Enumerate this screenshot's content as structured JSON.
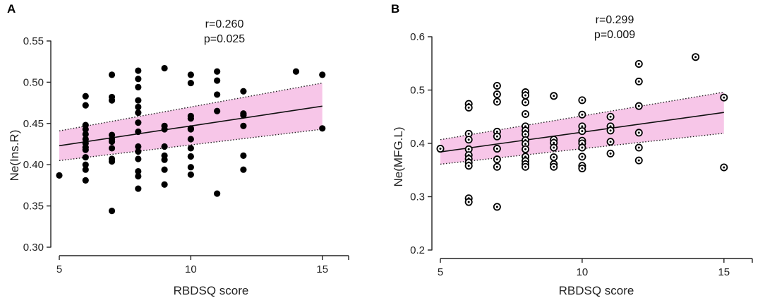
{
  "chart_data": [
    {
      "type": "scatter",
      "panel_label": "A",
      "xlabel": "RBDSQ score",
      "ylabel": "Ne(Ins.R)",
      "xlim": [
        5,
        16
      ],
      "ylim": [
        0.3,
        0.55
      ],
      "xticks": [
        5,
        10,
        15
      ],
      "xtick_labels": [
        "5",
        "10",
        "15"
      ],
      "yticks": [
        0.3,
        0.35,
        0.4,
        0.45,
        0.5,
        0.55
      ],
      "ytick_labels": [
        "0.30",
        "0.35",
        "0.40",
        "0.45",
        "0.50",
        "0.55"
      ],
      "stats": {
        "r": "r=0.260",
        "p": "p=0.025"
      },
      "marker": "filled",
      "fit": {
        "x": [
          5,
          15
        ],
        "y": [
          0.423,
          0.471
        ]
      },
      "band": {
        "x": [
          5,
          15
        ],
        "upper": [
          0.441,
          0.499
        ],
        "lower": [
          0.405,
          0.443
        ]
      },
      "points": [
        {
          "x": 5,
          "y": 0.387
        },
        {
          "x": 6,
          "y": 0.483
        },
        {
          "x": 6,
          "y": 0.472
        },
        {
          "x": 6,
          "y": 0.448
        },
        {
          "x": 6,
          "y": 0.443
        },
        {
          "x": 6,
          "y": 0.437
        },
        {
          "x": 6,
          "y": 0.431
        },
        {
          "x": 6,
          "y": 0.426
        },
        {
          "x": 6,
          "y": 0.421
        },
        {
          "x": 6,
          "y": 0.418
        },
        {
          "x": 6,
          "y": 0.409
        },
        {
          "x": 6,
          "y": 0.4
        },
        {
          "x": 6,
          "y": 0.394
        },
        {
          "x": 6,
          "y": 0.381
        },
        {
          "x": 7,
          "y": 0.509
        },
        {
          "x": 7,
          "y": 0.482
        },
        {
          "x": 7,
          "y": 0.478
        },
        {
          "x": 7,
          "y": 0.436
        },
        {
          "x": 7,
          "y": 0.431
        },
        {
          "x": 7,
          "y": 0.428
        },
        {
          "x": 7,
          "y": 0.42
        },
        {
          "x": 7,
          "y": 0.407
        },
        {
          "x": 7,
          "y": 0.404
        },
        {
          "x": 7,
          "y": 0.344
        },
        {
          "x": 8,
          "y": 0.514
        },
        {
          "x": 8,
          "y": 0.504
        },
        {
          "x": 8,
          "y": 0.494
        },
        {
          "x": 8,
          "y": 0.478
        },
        {
          "x": 8,
          "y": 0.47
        },
        {
          "x": 8,
          "y": 0.463
        },
        {
          "x": 8,
          "y": 0.451
        },
        {
          "x": 8,
          "y": 0.44
        },
        {
          "x": 8,
          "y": 0.422
        },
        {
          "x": 8,
          "y": 0.416
        },
        {
          "x": 8,
          "y": 0.407
        },
        {
          "x": 8,
          "y": 0.392
        },
        {
          "x": 8,
          "y": 0.386
        },
        {
          "x": 8,
          "y": 0.371
        },
        {
          "x": 9,
          "y": 0.517
        },
        {
          "x": 9,
          "y": 0.447
        },
        {
          "x": 9,
          "y": 0.443
        },
        {
          "x": 9,
          "y": 0.422
        },
        {
          "x": 9,
          "y": 0.411
        },
        {
          "x": 9,
          "y": 0.406
        },
        {
          "x": 9,
          "y": 0.394
        },
        {
          "x": 9,
          "y": 0.376
        },
        {
          "x": 10,
          "y": 0.509
        },
        {
          "x": 10,
          "y": 0.499
        },
        {
          "x": 10,
          "y": 0.459
        },
        {
          "x": 10,
          "y": 0.456
        },
        {
          "x": 10,
          "y": 0.444
        },
        {
          "x": 10,
          "y": 0.443
        },
        {
          "x": 10,
          "y": 0.431
        },
        {
          "x": 10,
          "y": 0.42
        },
        {
          "x": 10,
          "y": 0.41
        },
        {
          "x": 10,
          "y": 0.397
        },
        {
          "x": 10,
          "y": 0.388
        },
        {
          "x": 11,
          "y": 0.513
        },
        {
          "x": 11,
          "y": 0.502
        },
        {
          "x": 11,
          "y": 0.485
        },
        {
          "x": 11,
          "y": 0.465
        },
        {
          "x": 11,
          "y": 0.365
        },
        {
          "x": 12,
          "y": 0.489
        },
        {
          "x": 12,
          "y": 0.462
        },
        {
          "x": 12,
          "y": 0.46
        },
        {
          "x": 12,
          "y": 0.447
        },
        {
          "x": 12,
          "y": 0.411
        },
        {
          "x": 12,
          "y": 0.394
        },
        {
          "x": 14,
          "y": 0.513
        },
        {
          "x": 15,
          "y": 0.509
        },
        {
          "x": 15,
          "y": 0.444
        }
      ]
    },
    {
      "type": "scatter",
      "panel_label": "B",
      "xlabel": "RBDSQ score",
      "ylabel": "Ne(MFG.L)",
      "xlim": [
        5,
        16
      ],
      "ylim": [
        0.2,
        0.6
      ],
      "xticks": [
        5,
        10,
        15
      ],
      "xtick_labels": [
        "5",
        "10",
        "15"
      ],
      "yticks": [
        0.2,
        0.3,
        0.4,
        0.5,
        0.6
      ],
      "ytick_labels": [
        "0.2",
        "0.3",
        "0.4",
        "0.5",
        "0.6"
      ],
      "stats": {
        "r": "r=0.299",
        "p": "p=0.009"
      },
      "marker": "ring",
      "fit": {
        "x": [
          5,
          15
        ],
        "y": [
          0.384,
          0.458
        ]
      },
      "band": {
        "x": [
          5,
          15
        ],
        "upper": [
          0.407,
          0.496
        ],
        "lower": [
          0.361,
          0.419
        ]
      },
      "points": [
        {
          "x": 5,
          "y": 0.39
        },
        {
          "x": 6,
          "y": 0.474
        },
        {
          "x": 6,
          "y": 0.467
        },
        {
          "x": 6,
          "y": 0.418
        },
        {
          "x": 6,
          "y": 0.407
        },
        {
          "x": 6,
          "y": 0.389
        },
        {
          "x": 6,
          "y": 0.378
        },
        {
          "x": 6,
          "y": 0.371
        },
        {
          "x": 6,
          "y": 0.364
        },
        {
          "x": 6,
          "y": 0.358
        },
        {
          "x": 6,
          "y": 0.297
        },
        {
          "x": 6,
          "y": 0.29
        },
        {
          "x": 7,
          "y": 0.508
        },
        {
          "x": 7,
          "y": 0.492
        },
        {
          "x": 7,
          "y": 0.478
        },
        {
          "x": 7,
          "y": 0.422
        },
        {
          "x": 7,
          "y": 0.413
        },
        {
          "x": 7,
          "y": 0.39
        },
        {
          "x": 7,
          "y": 0.37
        },
        {
          "x": 7,
          "y": 0.356
        },
        {
          "x": 7,
          "y": 0.281
        },
        {
          "x": 8,
          "y": 0.496
        },
        {
          "x": 8,
          "y": 0.49
        },
        {
          "x": 8,
          "y": 0.477
        },
        {
          "x": 8,
          "y": 0.455
        },
        {
          "x": 8,
          "y": 0.432
        },
        {
          "x": 8,
          "y": 0.424
        },
        {
          "x": 8,
          "y": 0.417
        },
        {
          "x": 8,
          "y": 0.406
        },
        {
          "x": 8,
          "y": 0.399
        },
        {
          "x": 8,
          "y": 0.389
        },
        {
          "x": 8,
          "y": 0.375
        },
        {
          "x": 8,
          "y": 0.367
        },
        {
          "x": 8,
          "y": 0.361
        },
        {
          "x": 8,
          "y": 0.356
        },
        {
          "x": 9,
          "y": 0.489
        },
        {
          "x": 9,
          "y": 0.407
        },
        {
          "x": 9,
          "y": 0.401
        },
        {
          "x": 9,
          "y": 0.392
        },
        {
          "x": 9,
          "y": 0.374
        },
        {
          "x": 9,
          "y": 0.361
        },
        {
          "x": 9,
          "y": 0.356
        },
        {
          "x": 10,
          "y": 0.481
        },
        {
          "x": 10,
          "y": 0.454
        },
        {
          "x": 10,
          "y": 0.432
        },
        {
          "x": 10,
          "y": 0.423
        },
        {
          "x": 10,
          "y": 0.405
        },
        {
          "x": 10,
          "y": 0.4
        },
        {
          "x": 10,
          "y": 0.392
        },
        {
          "x": 10,
          "y": 0.375
        },
        {
          "x": 10,
          "y": 0.358
        },
        {
          "x": 10,
          "y": 0.353
        },
        {
          "x": 11,
          "y": 0.45
        },
        {
          "x": 11,
          "y": 0.432
        },
        {
          "x": 11,
          "y": 0.424
        },
        {
          "x": 11,
          "y": 0.403
        },
        {
          "x": 11,
          "y": 0.381
        },
        {
          "x": 12,
          "y": 0.549
        },
        {
          "x": 12,
          "y": 0.516
        },
        {
          "x": 12,
          "y": 0.47
        },
        {
          "x": 12,
          "y": 0.42
        },
        {
          "x": 12,
          "y": 0.392
        },
        {
          "x": 12,
          "y": 0.368
        },
        {
          "x": 14,
          "y": 0.562
        },
        {
          "x": 15,
          "y": 0.486
        },
        {
          "x": 15,
          "y": 0.355
        }
      ]
    }
  ],
  "colors": {
    "band_fill": "#f7c6e8",
    "band_edge": "#222222",
    "fit_line": "#111111",
    "axis": "#222222",
    "marker": "#000000"
  }
}
